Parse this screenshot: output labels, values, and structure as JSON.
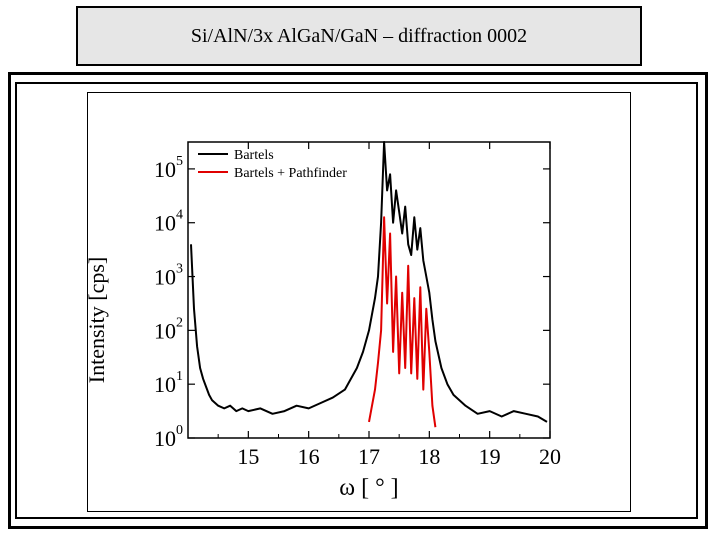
{
  "page": {
    "title": "Si/AlN/3x AlGaN/GaN – diffraction 0002"
  },
  "chart_data": {
    "type": "line",
    "title": "Si/AlN/3x AlGaN/GaN – diffraction 0002",
    "xlabel": "ω [ ° ]",
    "ylabel": "Intensity [cps]",
    "xlim": [
      14.0,
      20.0
    ],
    "ylim_log10": [
      0,
      5.5
    ],
    "yscale": "log",
    "x_ticks": [
      "15",
      "16",
      "17",
      "18",
      "19",
      "20"
    ],
    "x_tick_values": [
      15,
      16,
      17,
      18,
      19,
      20
    ],
    "y_tick_values": [
      0,
      1,
      2,
      3,
      4,
      5
    ],
    "y_tick_labels": [
      "10",
      "10",
      "10",
      "10",
      "10",
      "10"
    ],
    "y_tick_exponents": [
      "0",
      "1",
      "2",
      "3",
      "4",
      "5"
    ],
    "legend": {
      "position": "top-left"
    },
    "colors": {
      "Bartels": "#000000",
      "Bartels + Pathfinder": "#e00000"
    },
    "series": [
      {
        "name": "Bartels",
        "x": [
          14.05,
          14.1,
          14.15,
          14.2,
          14.25,
          14.3,
          14.35,
          14.4,
          14.5,
          14.6,
          14.7,
          14.8,
          14.9,
          15.0,
          15.2,
          15.4,
          15.6,
          15.8,
          16.0,
          16.2,
          16.4,
          16.6,
          16.8,
          16.9,
          17.0,
          17.1,
          17.15,
          17.2,
          17.25,
          17.3,
          17.35,
          17.4,
          17.45,
          17.5,
          17.55,
          17.6,
          17.65,
          17.7,
          17.75,
          17.8,
          17.85,
          17.9,
          17.95,
          18.0,
          18.05,
          18.1,
          18.2,
          18.3,
          18.4,
          18.6,
          18.8,
          19.0,
          19.2,
          19.4,
          19.6,
          19.8,
          19.95
        ],
        "log10_y": [
          3.6,
          2.4,
          1.7,
          1.3,
          1.1,
          0.95,
          0.8,
          0.7,
          0.6,
          0.55,
          0.6,
          0.5,
          0.55,
          0.5,
          0.55,
          0.45,
          0.5,
          0.6,
          0.55,
          0.65,
          0.75,
          0.9,
          1.3,
          1.6,
          2.0,
          2.6,
          3.0,
          4.0,
          5.5,
          4.6,
          4.9,
          4.0,
          4.6,
          4.2,
          3.8,
          4.3,
          3.6,
          3.4,
          4.1,
          3.5,
          3.9,
          3.3,
          3.0,
          2.7,
          2.2,
          1.8,
          1.3,
          1.0,
          0.8,
          0.6,
          0.45,
          0.5,
          0.4,
          0.5,
          0.45,
          0.4,
          0.3
        ]
      },
      {
        "name": "Bartels + Pathfinder",
        "x": [
          17.0,
          17.05,
          17.1,
          17.15,
          17.2,
          17.25,
          17.3,
          17.35,
          17.4,
          17.45,
          17.5,
          17.55,
          17.6,
          17.65,
          17.7,
          17.75,
          17.8,
          17.85,
          17.9,
          17.95,
          18.0,
          18.05,
          18.1
        ],
        "log10_y": [
          0.3,
          0.6,
          0.9,
          1.4,
          2.0,
          4.1,
          2.5,
          3.8,
          1.6,
          3.0,
          1.2,
          2.7,
          1.3,
          3.2,
          1.2,
          2.6,
          1.1,
          2.8,
          0.9,
          2.4,
          1.6,
          0.6,
          0.2
        ]
      }
    ]
  }
}
